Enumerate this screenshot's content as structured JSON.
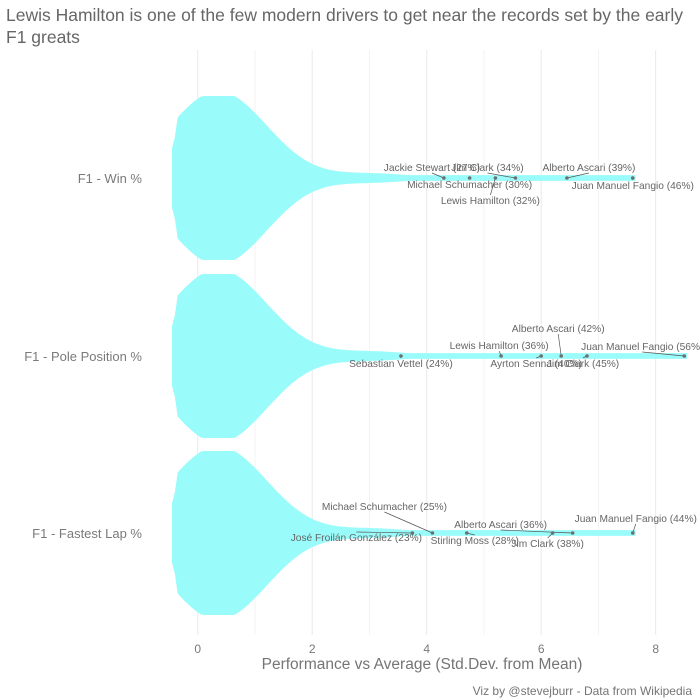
{
  "title": "Lewis Hamilton is one of the few modern drivers to get near the records set by the early F1 greats",
  "caption": "Viz by @stevejburr - Data from Wikipedia",
  "colors": {
    "violin": "#99fbfa",
    "point": "#6f6f6f",
    "label": "#666666",
    "grid": "#ebebeb",
    "axis_text": "#7a7a7a"
  },
  "chart_data": {
    "type": "violin",
    "xlabel": "Performance vs Average (Std.Dev. from Mean)",
    "xlim": [
      -0.45,
      8.6
    ],
    "xticks": [
      0,
      2,
      4,
      6,
      8
    ],
    "grid": true,
    "groups": [
      {
        "name": "F1 - Win %",
        "drivers": [
          {
            "label": "Jackie Stewart (27%)",
            "x": 4.3
          },
          {
            "label": "Michael Schumacher (30%)",
            "x": 4.75
          },
          {
            "label": "Lewis Hamilton (32%)",
            "x": 5.2
          },
          {
            "label": "Jim Clark (34%)",
            "x": 5.55
          },
          {
            "label": "Alberto Ascari (39%)",
            "x": 6.45
          },
          {
            "label": "Juan Manuel Fangio (46%)",
            "x": 7.6
          }
        ]
      },
      {
        "name": "F1 - Pole Position %",
        "drivers": [
          {
            "label": "Sebastian Vettel (24%)",
            "x": 3.55
          },
          {
            "label": "Lewis Hamilton (36%)",
            "x": 5.3
          },
          {
            "label": "Ayrton Senna (40%)",
            "x": 6.0
          },
          {
            "label": "Alberto Ascari (42%)",
            "x": 6.35
          },
          {
            "label": "Jim Clark (45%)",
            "x": 6.8
          },
          {
            "label": "Juan Manuel Fangio (56%)",
            "x": 8.5
          }
        ]
      },
      {
        "name": "F1 - Fastest Lap %",
        "drivers": [
          {
            "label": "José Froilán González (23%)",
            "x": 3.75
          },
          {
            "label": "Michael Schumacher (25%)",
            "x": 4.1
          },
          {
            "label": "Stirling Moss (28%)",
            "x": 4.7
          },
          {
            "label": "Jim Clark (38%)",
            "x": 6.2
          },
          {
            "label": "Alberto Ascari (36%)",
            "x": 6.55
          },
          {
            "label": "Juan Manuel Fangio (44%)",
            "x": 7.6
          }
        ]
      }
    ]
  }
}
